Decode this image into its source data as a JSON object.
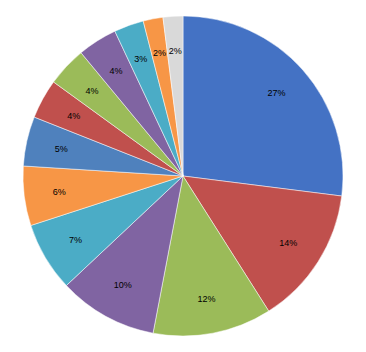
{
  "chart_data": {
    "type": "pie",
    "values": [
      27,
      14,
      12,
      10,
      7,
      6,
      5,
      4,
      4,
      4,
      3,
      2,
      2
    ],
    "value_labels": [
      "27%",
      "14%",
      "12%",
      "10%",
      "7%",
      "6%",
      "5%",
      "4%",
      "4%",
      "4%",
      "3%",
      "2%",
      "2%"
    ],
    "colors": [
      "#4472C4",
      "#C0504D",
      "#9BBB59",
      "#8064A2",
      "#4BACC6",
      "#F79646",
      "#4F81BD",
      "#C0504D",
      "#9BBB59",
      "#8064A2",
      "#4BACC6",
      "#F79646",
      "#D9D9D9"
    ],
    "data_labels": true
  }
}
